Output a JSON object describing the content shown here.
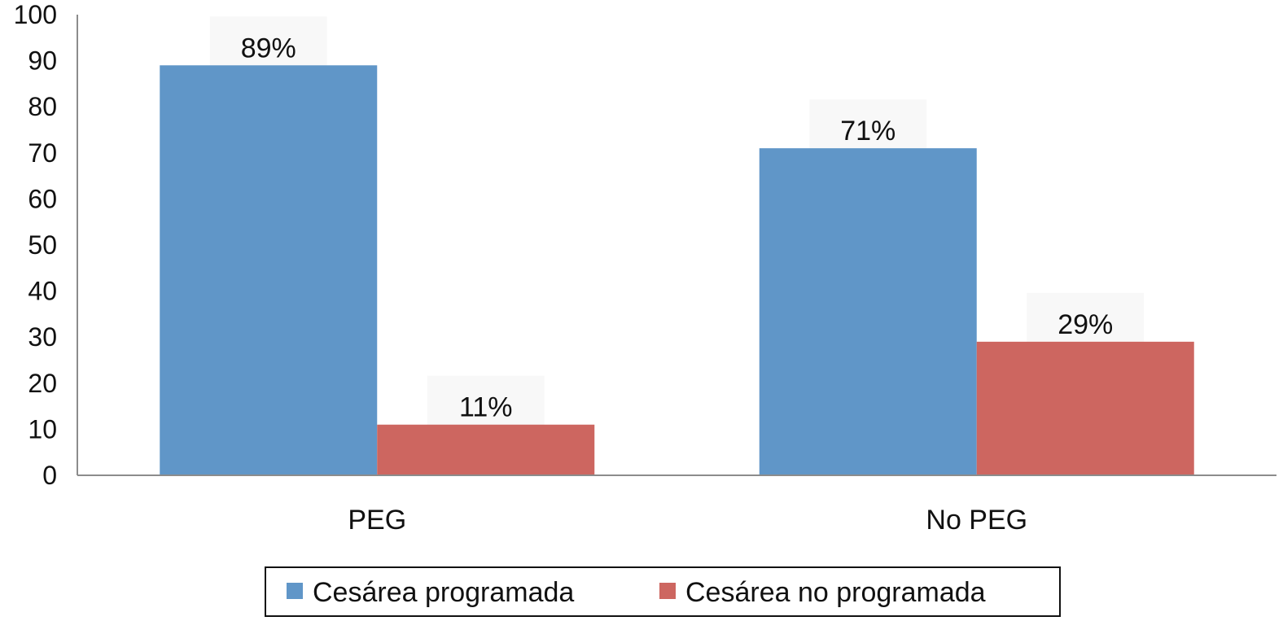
{
  "chart_data": {
    "type": "bar",
    "categories": [
      "PEG",
      "No PEG"
    ],
    "series": [
      {
        "name": "Cesárea programada",
        "values": [
          89,
          71
        ],
        "color": "#6096c8"
      },
      {
        "name": "Cesárea no programada",
        "values": [
          11,
          29
        ],
        "color": "#cd6660"
      }
    ],
    "data_labels": [
      [
        "89%",
        "71%"
      ],
      [
        "11%",
        "29%"
      ]
    ],
    "ylim": [
      0,
      100
    ],
    "yticks": [
      0,
      10,
      20,
      30,
      40,
      50,
      60,
      70,
      80,
      90,
      100
    ],
    "grid": false,
    "legend_position": "bottom",
    "title": "",
    "xlabel": "",
    "ylabel": ""
  }
}
